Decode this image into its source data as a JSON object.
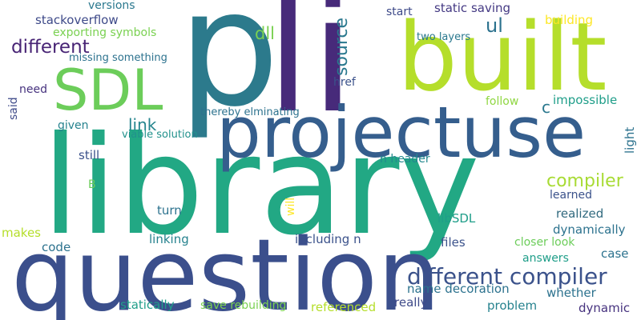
{
  "cloud": {
    "words": [
      {
        "text": "p",
        "color": "#2c7a8c"
      },
      {
        "text": "li",
        "color": "#472a7a"
      },
      {
        "text": "built",
        "color": "#b5de2b"
      },
      {
        "text": "library",
        "color": "#22a884"
      },
      {
        "text": "question",
        "color": "#3b4f8c"
      },
      {
        "text": "projectuse",
        "color": "#355e8d"
      },
      {
        "text": "SDL",
        "color": "#6ccd5a"
      },
      {
        "text": "different compiler",
        "color": "#3b528b"
      },
      {
        "text": "different",
        "color": "#482475"
      },
      {
        "text": "source",
        "color": "#2a788e"
      },
      {
        "text": "compiler",
        "color": "#a8db34"
      },
      {
        "text": "link",
        "color": "#25858e"
      },
      {
        "text": "ul",
        "color": "#2c728e"
      },
      {
        "text": "dll",
        "color": "#7ad151"
      },
      {
        "text": "stackoverflow",
        "color": "#3e4a89"
      },
      {
        "text": "versions",
        "color": "#2a788e"
      },
      {
        "text": "exporting symbols",
        "color": "#7ad151"
      },
      {
        "text": "missing something",
        "color": "#2c728e"
      },
      {
        "text": "need",
        "color": "#46327e"
      },
      {
        "text": "said",
        "color": "#3e4a89"
      },
      {
        "text": "given",
        "color": "#26828e"
      },
      {
        "text": "still",
        "color": "#3b528b"
      },
      {
        "text": "B",
        "color": "#6ccd5a"
      },
      {
        "text": "thereby elminating",
        "color": "#2c728e"
      },
      {
        "text": "viable solution",
        "color": "#21918c"
      },
      {
        "text": "start",
        "color": "#3e4a89"
      },
      {
        "text": "static saving",
        "color": "#443983"
      },
      {
        "text": "building",
        "color": "#fde725"
      },
      {
        "text": "two layers",
        "color": "#2a788e"
      },
      {
        "text": "follow",
        "color": "#90d743"
      },
      {
        "text": "impossible",
        "color": "#1f9e89"
      },
      {
        "text": "c",
        "color": "#2a788e"
      },
      {
        "text": "light",
        "color": "#2c728e"
      },
      {
        "text": "href",
        "color": "#3b528b"
      },
      {
        "text": "n header",
        "color": "#23888e"
      },
      {
        "text": "learned",
        "color": "#3b528b"
      },
      {
        "text": "realized",
        "color": "#30697e"
      },
      {
        "text": "dynamically",
        "color": "#2c728e"
      },
      {
        "text": "closer look",
        "color": "#6ccd5a"
      },
      {
        "text": "case",
        "color": "#2c728e"
      },
      {
        "text": "answers",
        "color": "#1f9e89"
      },
      {
        "text": "whether",
        "color": "#2c728e"
      },
      {
        "text": "dynamic",
        "color": "#46327e"
      },
      {
        "text": "problem",
        "color": "#26828e"
      },
      {
        "text": "really",
        "color": "#3e4a89"
      },
      {
        "text": "referenced",
        "color": "#b5de2b"
      },
      {
        "text": "name decoration",
        "color": "#2c728e"
      },
      {
        "text": "files",
        "color": "#3b528b"
      },
      {
        "text": "libSDL",
        "color": "#1f9e89"
      },
      {
        "text": "will",
        "color": "#fde725"
      },
      {
        "text": "including n",
        "color": "#3b528b"
      },
      {
        "text": "turn",
        "color": "#2c728e"
      },
      {
        "text": "linking",
        "color": "#26828e"
      },
      {
        "text": "makes",
        "color": "#b5de2b"
      },
      {
        "text": "code",
        "color": "#2c728e"
      },
      {
        "text": "statically",
        "color": "#1f9e89"
      },
      {
        "text": "save rebuilding",
        "color": "#7ad151"
      }
    ]
  }
}
